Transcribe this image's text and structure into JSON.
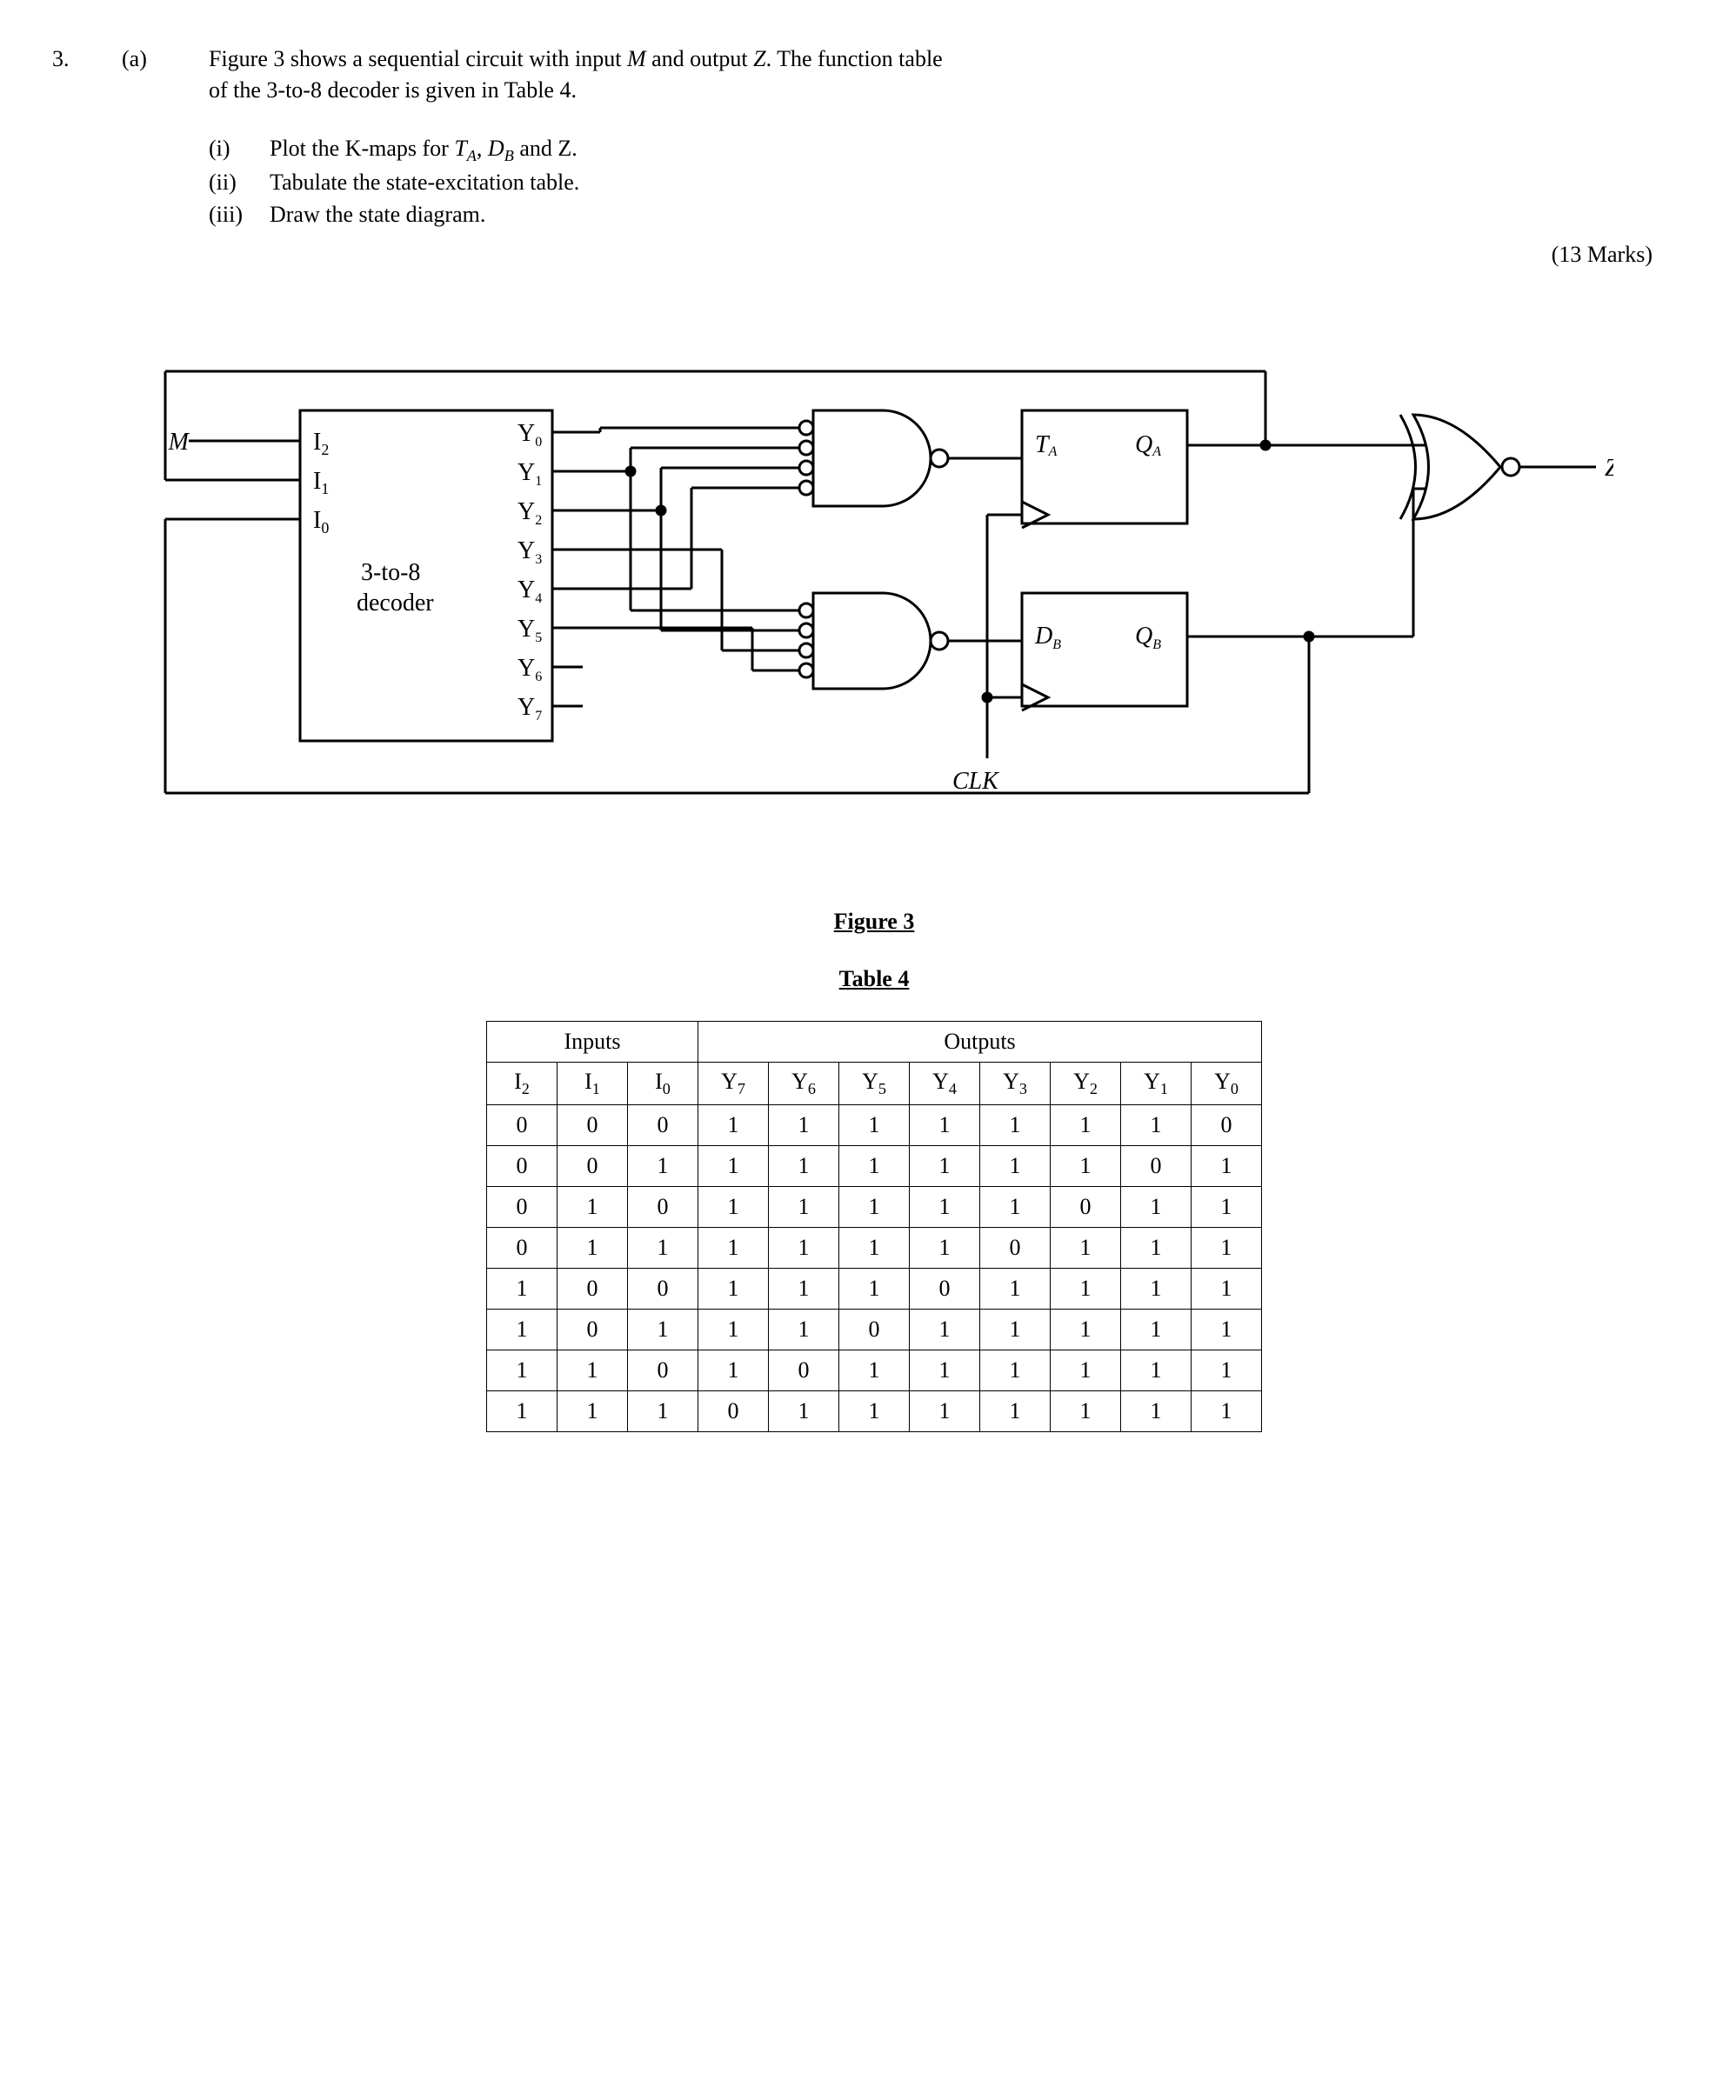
{
  "question": {
    "number": "3.",
    "part": "(a)",
    "text_line1": "Figure 3 shows a sequential circuit with input ",
    "text_M": "M",
    "text_mid1": " and output ",
    "text_Z": "Z",
    "text_line1b": ". The function table",
    "text_line2": "of the 3-to-8 decoder is given in Table 4.",
    "subparts": [
      {
        "label": "(i)",
        "text_a": "Plot the K-maps for ",
        "it1": "T",
        "sub1": "A",
        "mid": ", ",
        "it2": "D",
        "sub2": "B",
        "text_b": " and Z."
      },
      {
        "label": "(ii)",
        "text_a": "Tabulate the state-excitation table.",
        "it1": "",
        "sub1": "",
        "mid": "",
        "it2": "",
        "sub2": "",
        "text_b": ""
      },
      {
        "label": "(iii)",
        "text_a": "Draw the state diagram.",
        "it1": "",
        "sub1": "",
        "mid": "",
        "it2": "",
        "sub2": "",
        "text_b": ""
      }
    ],
    "marks": "(13 Marks)"
  },
  "figure": {
    "caption": "Figure 3",
    "labels": {
      "M": "M",
      "I2": "I",
      "I2sub": "2",
      "I1": "I",
      "I1sub": "1",
      "I0": "I",
      "I0sub": "0",
      "decoder1": "3-to-8",
      "decoder2": "decoder",
      "Y0": "Y",
      "Y1": "Y",
      "Y2": "Y",
      "Y3": "Y",
      "Y4": "Y",
      "Y5": "Y",
      "Y6": "Y",
      "Y7": "Y",
      "TA": "T",
      "TAsub": "A",
      "QA": "Q",
      "QAsub": "A",
      "DB": "D",
      "DBsub": "B",
      "QB": "Q",
      "QBsub": "B",
      "CLK": "CLK",
      "Z": "Z"
    }
  },
  "table": {
    "caption": "Table 4",
    "inputs_hdr": "Inputs",
    "outputs_hdr": "Outputs",
    "columns_in": [
      "I2",
      "I1",
      "I0"
    ],
    "columns_out": [
      "Y7",
      "Y6",
      "Y5",
      "Y4",
      "Y3",
      "Y2",
      "Y1",
      "Y0"
    ],
    "rows": [
      [
        0,
        0,
        0,
        1,
        1,
        1,
        1,
        1,
        1,
        1,
        0
      ],
      [
        0,
        0,
        1,
        1,
        1,
        1,
        1,
        1,
        1,
        0,
        1
      ],
      [
        0,
        1,
        0,
        1,
        1,
        1,
        1,
        1,
        0,
        1,
        1
      ],
      [
        0,
        1,
        1,
        1,
        1,
        1,
        1,
        0,
        1,
        1,
        1
      ],
      [
        1,
        0,
        0,
        1,
        1,
        1,
        0,
        1,
        1,
        1,
        1
      ],
      [
        1,
        0,
        1,
        1,
        1,
        0,
        1,
        1,
        1,
        1,
        1
      ],
      [
        1,
        1,
        0,
        1,
        0,
        1,
        1,
        1,
        1,
        1,
        1
      ],
      [
        1,
        1,
        1,
        0,
        1,
        1,
        1,
        1,
        1,
        1,
        1
      ]
    ]
  },
  "style": {
    "stroke": "#000000",
    "stroke_width": 3,
    "font_family": "Times New Roman",
    "font_size_diagram": 24,
    "font_size_sub": 16
  }
}
